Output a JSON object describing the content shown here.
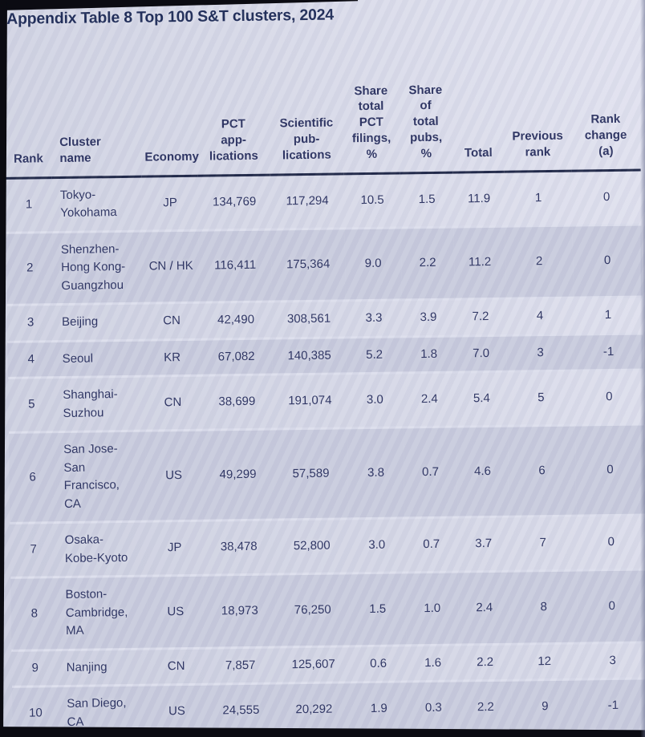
{
  "page": {
    "title": "Appendix Table 8 Top 100 S&T clusters, 2024"
  },
  "table": {
    "headers": [
      "Rank",
      "Cluster\nname",
      "Economy",
      "PCT\napp-\nlications",
      "Scientific\npub-\nlications",
      "Share\ntotal\nPCT\nfilings,\n%",
      "Share\nof\ntotal\npubs,\n%",
      "Total",
      "Previous\nrank",
      "Rank\nchange\n(a)"
    ],
    "rows": [
      [
        "1",
        "Tokyo-\nYokohama",
        "JP",
        "134,769",
        "117,294",
        "10.5",
        "1.5",
        "11.9",
        "1",
        "0"
      ],
      [
        "2",
        "Shenzhen-\nHong Kong-\nGuangzhou",
        "CN / HK",
        "116,411",
        "175,364",
        "9.0",
        "2.2",
        "11.2",
        "2",
        "0"
      ],
      [
        "3",
        "Beijing",
        "CN",
        "42,490",
        "308,561",
        "3.3",
        "3.9",
        "7.2",
        "4",
        "1"
      ],
      [
        "4",
        "Seoul",
        "KR",
        "67,082",
        "140,385",
        "5.2",
        "1.8",
        "7.0",
        "3",
        "-1"
      ],
      [
        "5",
        "Shanghai-\nSuzhou",
        "CN",
        "38,699",
        "191,074",
        "3.0",
        "2.4",
        "5.4",
        "5",
        "0"
      ],
      [
        "6",
        "San Jose-\nSan\nFrancisco,\nCA",
        "US",
        "49,299",
        "57,589",
        "3.8",
        "0.7",
        "4.6",
        "6",
        "0"
      ],
      [
        "7",
        "Osaka-\nKobe-Kyoto",
        "JP",
        "38,478",
        "52,800",
        "3.0",
        "0.7",
        "3.7",
        "7",
        "0"
      ],
      [
        "8",
        "Boston-\nCambridge,\nMA",
        "US",
        "18,973",
        "76,250",
        "1.5",
        "1.0",
        "2.4",
        "8",
        "0"
      ],
      [
        "9",
        "Nanjing",
        "CN",
        "7,857",
        "125,607",
        "0.6",
        "1.6",
        "2.2",
        "12",
        "3"
      ],
      [
        "10",
        "San Diego,\nCA",
        "US",
        "24,555",
        "20,292",
        "1.9",
        "0.3",
        "2.2",
        "9",
        "-1"
      ]
    ]
  },
  "chart_data": {
    "type": "table",
    "title": "Appendix Table 8 Top 100 S&T clusters, 2024",
    "columns": [
      "Rank",
      "Cluster name",
      "Economy",
      "PCT applications",
      "Scientific publications",
      "Share total PCT filings, %",
      "Share of total pubs, %",
      "Total",
      "Previous rank",
      "Rank change (a)"
    ],
    "rows": [
      [
        1,
        "Tokyo-Yokohama",
        "JP",
        134769,
        117294,
        10.5,
        1.5,
        11.9,
        1,
        0
      ],
      [
        2,
        "Shenzhen-Hong Kong-Guangzhou",
        "CN / HK",
        116411,
        175364,
        9.0,
        2.2,
        11.2,
        2,
        0
      ],
      [
        3,
        "Beijing",
        "CN",
        42490,
        308561,
        3.3,
        3.9,
        7.2,
        4,
        1
      ],
      [
        4,
        "Seoul",
        "KR",
        67082,
        140385,
        5.2,
        1.8,
        7.0,
        3,
        -1
      ],
      [
        5,
        "Shanghai-Suzhou",
        "CN",
        38699,
        191074,
        3.0,
        2.4,
        5.4,
        5,
        0
      ],
      [
        6,
        "San Jose-San Francisco, CA",
        "US",
        49299,
        57589,
        3.8,
        0.7,
        4.6,
        6,
        0
      ],
      [
        7,
        "Osaka-Kobe-Kyoto",
        "JP",
        38478,
        52800,
        3.0,
        0.7,
        3.7,
        7,
        0
      ],
      [
        8,
        "Boston-Cambridge, MA",
        "US",
        18973,
        76250,
        1.5,
        1.0,
        2.4,
        8,
        0
      ],
      [
        9,
        "Nanjing",
        "CN",
        7857,
        125607,
        0.6,
        1.6,
        2.2,
        12,
        3
      ],
      [
        10,
        "San Diego, CA",
        "US",
        24555,
        20292,
        1.9,
        0.3,
        2.2,
        9,
        -1
      ]
    ]
  },
  "colors": {
    "background": "#d6d8e7",
    "row_shaded": "#c8cbdd",
    "text": "#2a3160",
    "title_text": "#1d2a56",
    "header_rule": "#1d2545",
    "photo_edge": "#0b0b12"
  }
}
